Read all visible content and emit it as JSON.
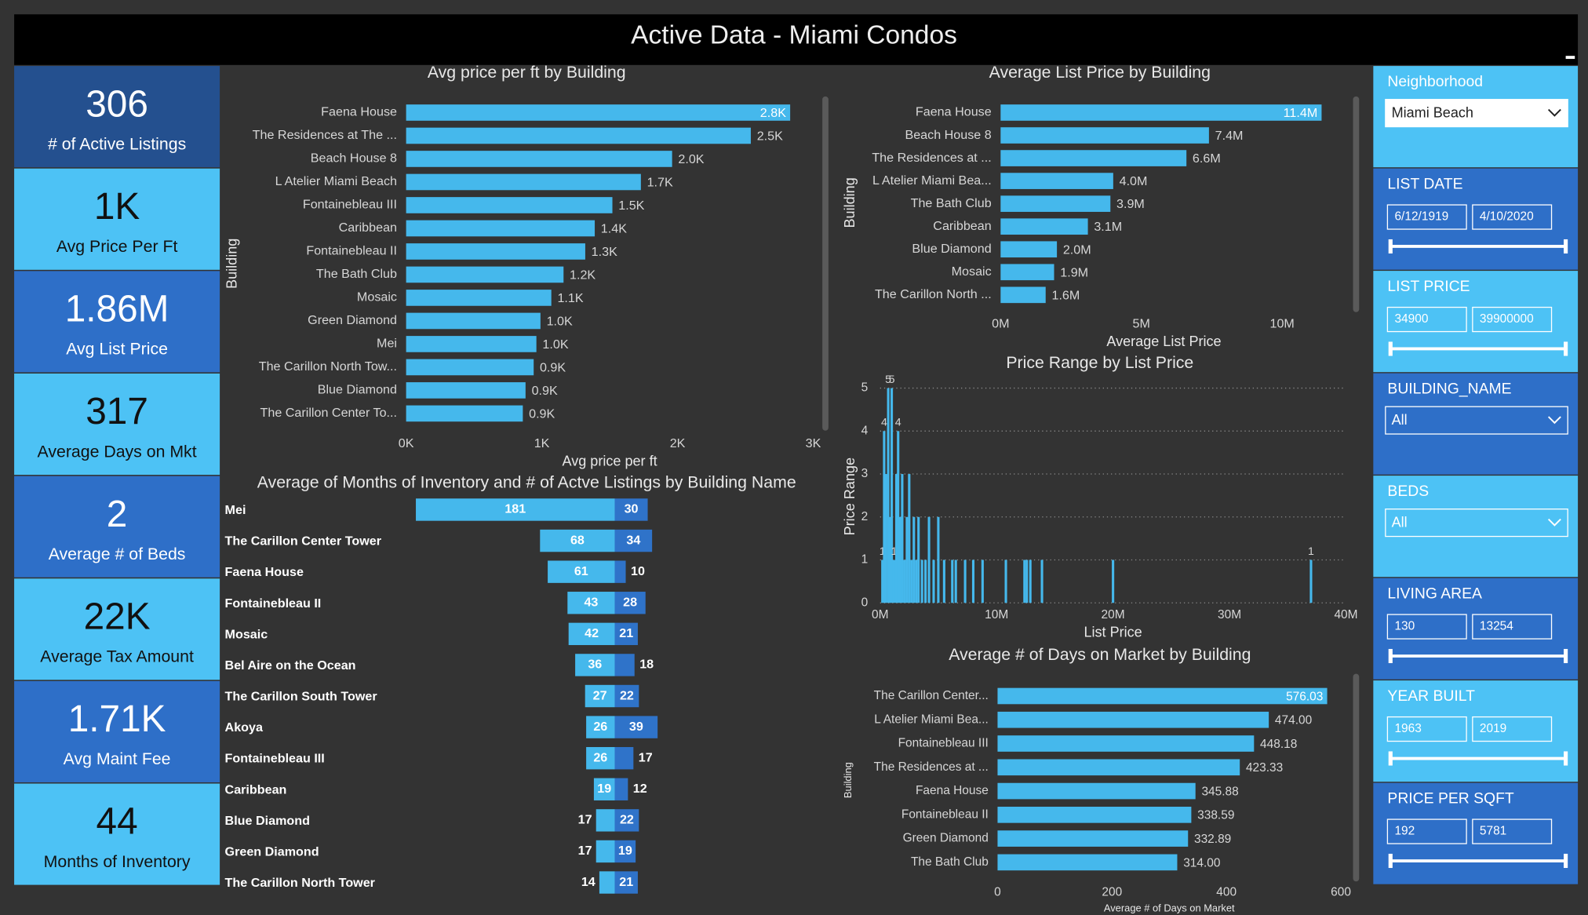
{
  "title": "Active Data - Miami Condos",
  "kpis": [
    {
      "value": "306",
      "label": "# of Active Listings"
    },
    {
      "value": "1K",
      "label": "Avg Price Per Ft"
    },
    {
      "value": "1.86M",
      "label": "Avg List Price"
    },
    {
      "value": "317",
      "label": "Average Days on Mkt"
    },
    {
      "value": "2",
      "label": "Average # of Beds"
    },
    {
      "value": "22K",
      "label": "Average Tax Amount"
    },
    {
      "value": "1.71K",
      "label": "Avg Maint Fee"
    },
    {
      "value": "44",
      "label": "Months of Inventory"
    }
  ],
  "filters": [
    {
      "label": "Neighborhood",
      "selected": "Miami Beach"
    },
    {
      "label": "LIST DATE",
      "from": "6/12/1919",
      "to": "4/10/2020"
    },
    {
      "label": "LIST PRICE",
      "from": "34900",
      "to": "39900000"
    },
    {
      "label": "BUILDING_NAME",
      "selected": "All"
    },
    {
      "label": "BEDS",
      "selected": "All"
    },
    {
      "label": "LIVING AREA",
      "from": "130",
      "to": "13254"
    },
    {
      "label": "YEAR BUILT",
      "from": "1963",
      "to": "2019"
    },
    {
      "label": "PRICE PER SQFT",
      "from": "192",
      "to": "5781"
    }
  ],
  "chart_data": [
    {
      "type": "bar",
      "orientation": "horizontal",
      "title": "Avg price per ft by Building",
      "categories": [
        "Faena House",
        "The Residences at The ...",
        "Beach House 8",
        "L Atelier Miami Beach",
        "Fontainebleau III",
        "Caribbean",
        "Fontainebleau II",
        "The Bath Club",
        "Mosaic",
        "Green Diamond",
        "Mei",
        "The Carillon North Tow...",
        "Blue Diamond",
        "The Carillon Center To..."
      ],
      "values": [
        2830,
        2540,
        1960,
        1730,
        1520,
        1390,
        1320,
        1160,
        1070,
        990,
        960,
        940,
        880,
        860
      ],
      "value_labels": [
        "2.8K",
        "2.5K",
        "2.0K",
        "1.7K",
        "1.5K",
        "1.4K",
        "1.3K",
        "1.2K",
        "1.1K",
        "1.0K",
        "1.0K",
        "0.9K",
        "0.9K",
        "0.9K"
      ],
      "color": "#45b8ec",
      "xlim": [
        0,
        3000
      ],
      "xticks": [
        {
          "value": 0,
          "label": "0K"
        },
        {
          "value": 1000,
          "label": "1K"
        },
        {
          "value": 2000,
          "label": "2K"
        },
        {
          "value": 3000,
          "label": "3K"
        }
      ],
      "x_label": "Avg price per ft",
      "y_label": "Building"
    },
    {
      "type": "bar",
      "orientation": "horizontal",
      "title": "Average List Price by Building",
      "categories": [
        "Faena House",
        "Beach House 8",
        "The Residences at ...",
        "L Atelier Miami Bea...",
        "The Bath Club",
        "Caribbean",
        "Blue Diamond",
        "Mosaic",
        "The Carillon North ..."
      ],
      "values": [
        11400000,
        7400000,
        6600000,
        4000000,
        3900000,
        3100000,
        2000000,
        1900000,
        1600000
      ],
      "value_labels": [
        "11.4M",
        "7.4M",
        "6.6M",
        "4.0M",
        "3.9M",
        "3.1M",
        "2.0M",
        "1.9M",
        "1.6M"
      ],
      "color": "#45b8ec",
      "xlim": [
        0,
        11600000
      ],
      "xticks": [
        {
          "value": 0,
          "label": "0M"
        },
        {
          "value": 5000000,
          "label": "5M"
        },
        {
          "value": 10000000,
          "label": "10M"
        }
      ],
      "x_label": "Average List Price",
      "y_label": "Building"
    },
    {
      "type": "bar",
      "orientation": "vertical",
      "title": "Price Range by List Price",
      "x": [
        200000,
        350000,
        500000,
        700000,
        850000,
        1000000,
        1200000,
        1400000,
        1550000,
        1700000,
        1900000,
        2100000,
        2300000,
        2500000,
        2700000,
        2900000,
        3100000,
        3300000,
        3600000,
        3900000,
        4200000,
        4600000,
        5000000,
        5500000,
        6200000,
        6500000,
        7300000,
        8000000,
        8800000,
        10800000,
        12400000,
        12600000,
        12900000,
        13900000,
        20000000,
        37000000
      ],
      "values": [
        1,
        4,
        3,
        5,
        2,
        5,
        1,
        3,
        4,
        2,
        3,
        1,
        2,
        3,
        1,
        2,
        1,
        2,
        1,
        1,
        2,
        1,
        2,
        1,
        1,
        1,
        1,
        1,
        1,
        1,
        1,
        1,
        1,
        1,
        1,
        1
      ],
      "value_labels": [
        "1",
        "4",
        null,
        "5",
        null,
        "5",
        "1",
        null,
        "4",
        null,
        null,
        null,
        null,
        null,
        null,
        null,
        null,
        null,
        null,
        null,
        null,
        null,
        null,
        null,
        null,
        null,
        null,
        null,
        null,
        null,
        null,
        null,
        null,
        null,
        null,
        "1"
      ],
      "color": "#45b8ec",
      "xlim": [
        0,
        40000000
      ],
      "xticks": [
        {
          "value": 0,
          "label": "0M"
        },
        {
          "value": 10000000,
          "label": "10M"
        },
        {
          "value": 20000000,
          "label": "20M"
        },
        {
          "value": 30000000,
          "label": "30M"
        },
        {
          "value": 40000000,
          "label": "40M"
        }
      ],
      "ylim": [
        0,
        5
      ],
      "yticks": [
        0,
        1,
        2,
        3,
        4,
        5
      ],
      "grid": true,
      "x_label": "List Price",
      "y_label": "Price Range"
    },
    {
      "type": "diverging_bar",
      "title": "Average of Months of Inventory and # of Actve Listings by Building Name",
      "categories": [
        "Mei",
        "The Carillon Center Tower",
        "Faena House",
        "Fontainebleau II",
        "Mosaic",
        "Bel Aire on the Ocean",
        "The Carillon South Tower",
        "Akoya",
        "Fontainebleau III",
        "Caribbean",
        "Blue Diamond",
        "Green Diamond",
        "The Carillon North Tower"
      ],
      "series": [
        {
          "color": "#45b8ec",
          "values": [
            181,
            68,
            61,
            43,
            42,
            36,
            27,
            26,
            26,
            19,
            17,
            17,
            14
          ]
        },
        {
          "color": "#2f73c9",
          "values": [
            30,
            34,
            10,
            28,
            21,
            18,
            22,
            39,
            17,
            12,
            22,
            19,
            21
          ]
        }
      ]
    },
    {
      "type": "bar",
      "orientation": "horizontal",
      "title": "Average # of Days on Market by Building",
      "categories": [
        "The Carillon Center...",
        "L Atelier Miami Bea...",
        "Fontainebleau III",
        "The Residences at ...",
        "Faena House",
        "Fontainebleau II",
        "Green Diamond",
        "The Bath Club"
      ],
      "values": [
        576.03,
        474,
        448.18,
        423.33,
        345.88,
        338.59,
        332.89,
        314
      ],
      "value_labels": [
        "576.03",
        "474.00",
        "448.18",
        "423.33",
        "345.88",
        "338.59",
        "332.89",
        "314.00"
      ],
      "color": "#45b8ec",
      "xlim": [
        0,
        600
      ],
      "xticks": [
        0,
        200,
        400,
        600
      ],
      "x_label": "Average # of Days on Market",
      "y_label": "Building"
    }
  ]
}
